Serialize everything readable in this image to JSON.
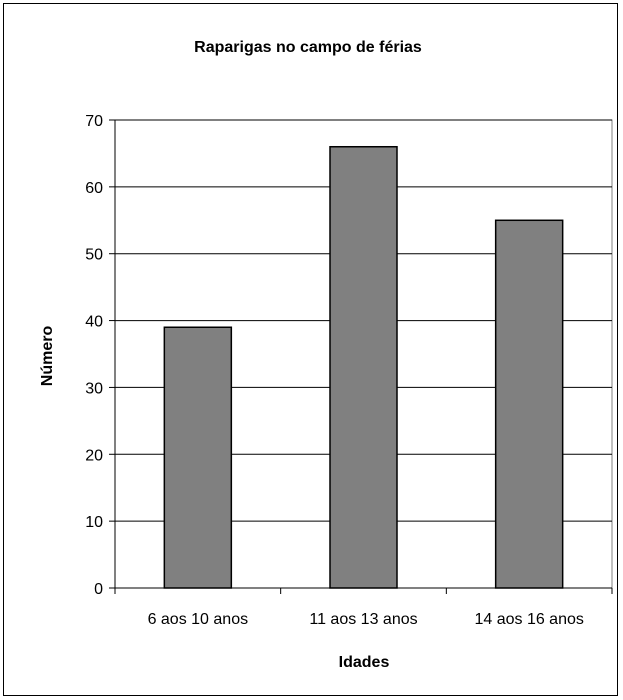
{
  "chart_data": {
    "type": "bar",
    "title": "Raparigas no campo de férias",
    "xlabel": "Idades",
    "ylabel": "Número",
    "categories": [
      "6 aos 10 anos",
      "11 aos 13 anos",
      "14 aos 16 anos"
    ],
    "values": [
      39,
      66,
      55
    ],
    "ylim": [
      0,
      70
    ],
    "yticks": [
      0,
      10,
      20,
      30,
      40,
      50,
      60,
      70
    ],
    "grid": true,
    "legend": "none",
    "bar_color": "#808080"
  }
}
